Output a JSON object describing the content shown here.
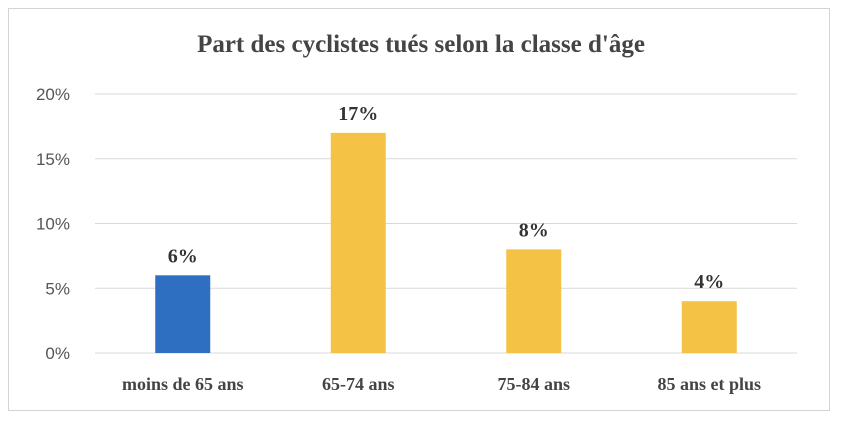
{
  "chart_data": {
    "type": "bar",
    "title": "Part des cyclistes tués selon la classe d'âge",
    "categories": [
      "moins de 65 ans",
      "65-74 ans",
      "75-84 ans",
      "85 ans et plus"
    ],
    "values": [
      6,
      17,
      8,
      4
    ],
    "data_labels": [
      "6%",
      "17%",
      "8%",
      "4%"
    ],
    "yticks": [
      0,
      5,
      10,
      15,
      20
    ],
    "ytick_labels": [
      "0%",
      "5%",
      "10%",
      "15%",
      "20%"
    ],
    "ylim": [
      0,
      20
    ],
    "grid": true,
    "legend": "none",
    "colors": [
      "#2e6fc2",
      "#f4c244",
      "#f4c244",
      "#f4c244"
    ]
  }
}
